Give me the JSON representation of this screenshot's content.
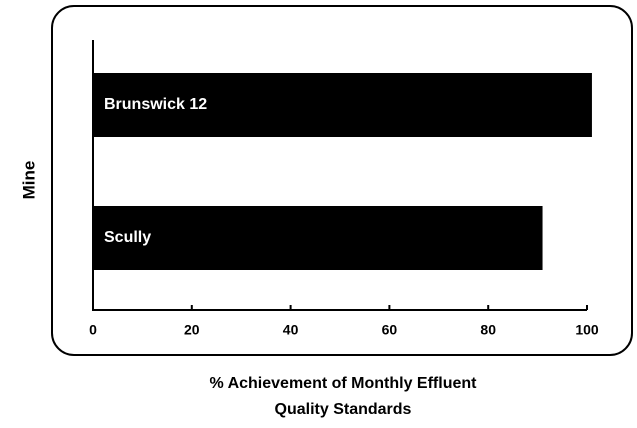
{
  "chart_data": {
    "type": "barh",
    "categories": [
      "Brunswick 12",
      "Scully"
    ],
    "values": [
      101,
      91
    ],
    "color": "#000000",
    "xlim": [
      0,
      100
    ],
    "xticks": [
      0,
      20,
      40,
      60,
      80,
      100
    ],
    "ylabel": "Mine",
    "xlabel": [
      "% Achievement  of Monthly Effluent",
      "Quality Standards"
    ]
  }
}
